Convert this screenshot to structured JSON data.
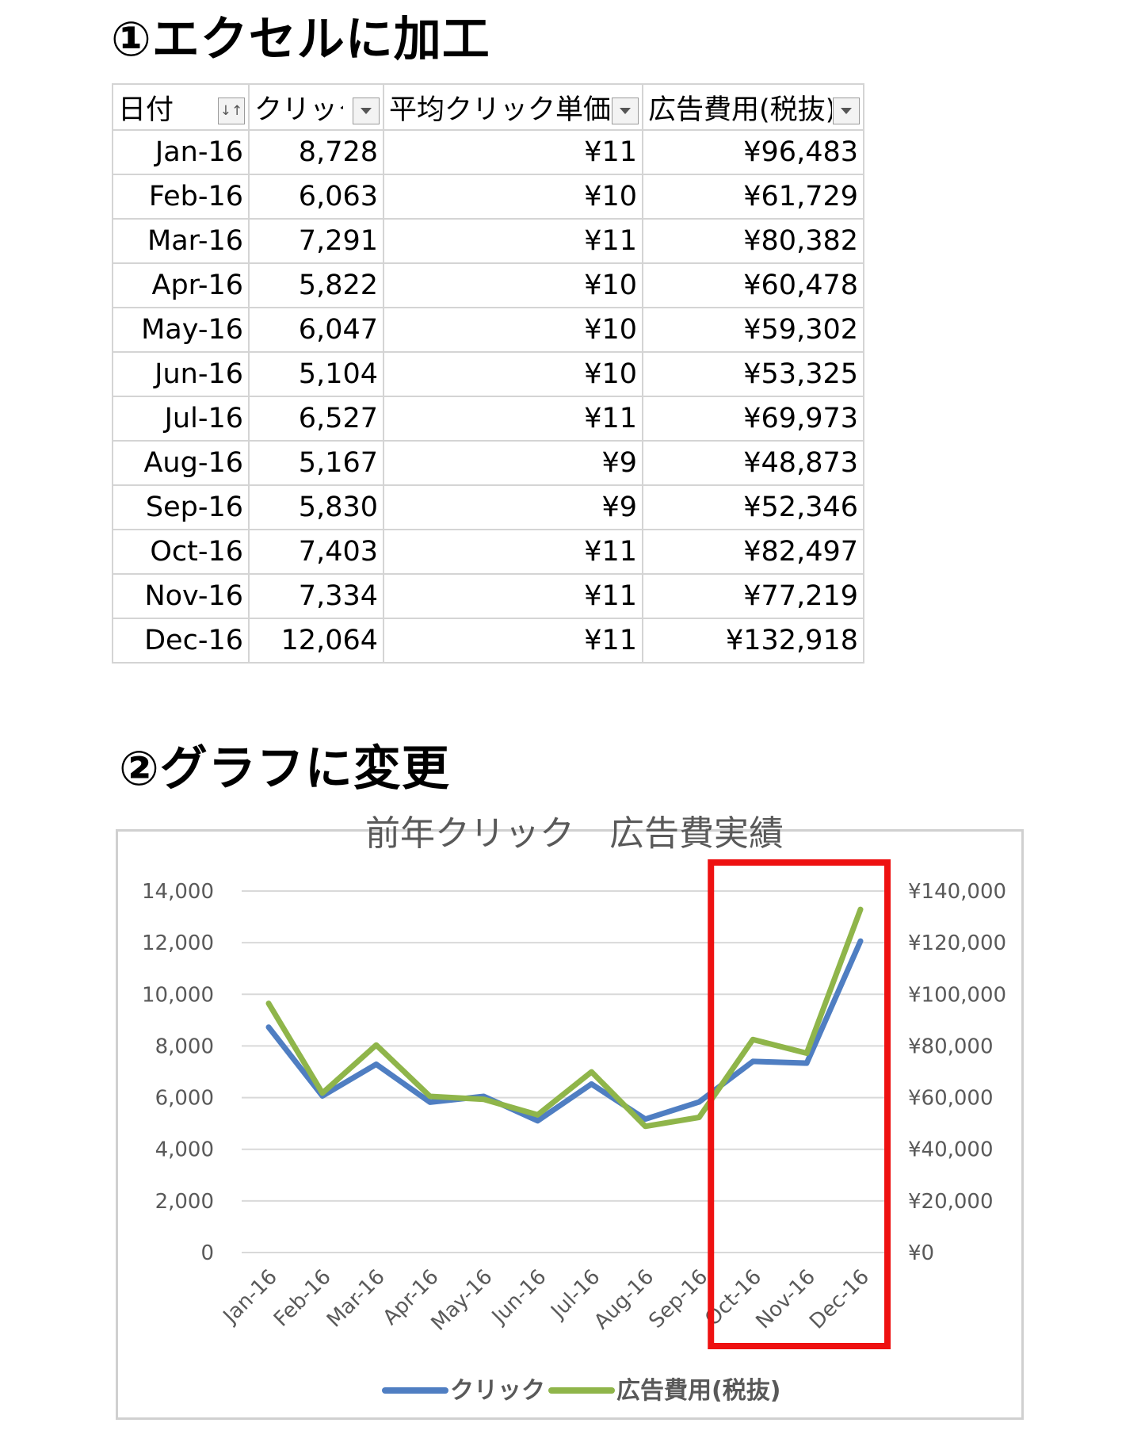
{
  "headings": {
    "step1": "①エクセルに加工",
    "step2": "②グラフに変更"
  },
  "table": {
    "columns": [
      "日付",
      "クリック",
      "平均クリック単価",
      "広告費用(税抜)"
    ],
    "columns_visible": [
      "日付",
      "クリック",
      "平均クリック単価",
      "広告費用(税抜)"
    ],
    "rows": [
      [
        "Jan-16",
        "8,728",
        "¥11",
        "¥96,483"
      ],
      [
        "Feb-16",
        "6,063",
        "¥10",
        "¥61,729"
      ],
      [
        "Mar-16",
        "7,291",
        "¥11",
        "¥80,382"
      ],
      [
        "Apr-16",
        "5,822",
        "¥10",
        "¥60,478"
      ],
      [
        "May-16",
        "6,047",
        "¥10",
        "¥59,302"
      ],
      [
        "Jun-16",
        "5,104",
        "¥10",
        "¥53,325"
      ],
      [
        "Jul-16",
        "6,527",
        "¥11",
        "¥69,973"
      ],
      [
        "Aug-16",
        "5,167",
        "¥9",
        "¥48,873"
      ],
      [
        "Sep-16",
        "5,830",
        "¥9",
        "¥52,346"
      ],
      [
        "Oct-16",
        "7,403",
        "¥11",
        "¥82,497"
      ],
      [
        "Nov-16",
        "7,334",
        "¥11",
        "¥77,219"
      ],
      [
        "Dec-16",
        "12,064",
        "¥11",
        "¥132,918"
      ]
    ]
  },
  "chart_data": {
    "type": "line",
    "title": "前年クリック　広告費実績",
    "categories": [
      "Jan-16",
      "Feb-16",
      "Mar-16",
      "Apr-16",
      "May-16",
      "Jun-16",
      "Jul-16",
      "Aug-16",
      "Sep-16",
      "Oct-16",
      "Nov-16",
      "Dec-16"
    ],
    "series": [
      {
        "name": "クリック",
        "axis": "left",
        "color": "#4f7ec2",
        "values": [
          8728,
          6063,
          7291,
          5822,
          6047,
          5104,
          6527,
          5167,
          5830,
          7403,
          7334,
          12064
        ]
      },
      {
        "name": "広告費用(税抜)",
        "axis": "right",
        "color": "#8fb54a",
        "values": [
          96483,
          61729,
          80382,
          60478,
          59302,
          53325,
          69973,
          48873,
          52346,
          82497,
          77219,
          132918
        ]
      }
    ],
    "y_left": {
      "ylim": [
        0,
        14000
      ],
      "ticks": [
        "0",
        "2,000",
        "4,000",
        "6,000",
        "8,000",
        "10,000",
        "12,000",
        "14,000"
      ]
    },
    "y_right": {
      "ylim": [
        0,
        140000
      ],
      "ticks": [
        "¥0",
        "¥20,000",
        "¥40,000",
        "¥60,000",
        "¥80,000",
        "¥100,000",
        "¥120,000",
        "¥140,000"
      ]
    },
    "grid": true,
    "legend": "bottom",
    "highlight": {
      "categories": [
        "Oct-16",
        "Nov-16",
        "Dec-16"
      ],
      "color": "#ee1111"
    }
  }
}
